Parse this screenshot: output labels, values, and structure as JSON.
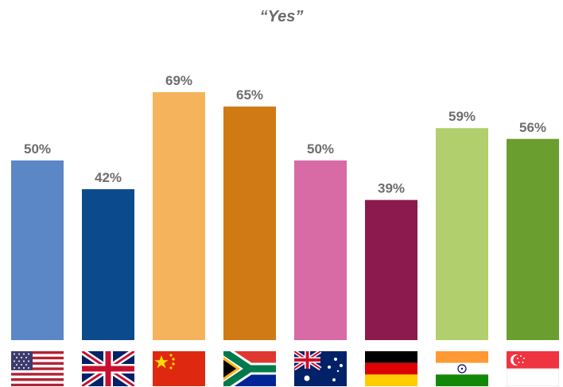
{
  "chart_data": {
    "type": "bar",
    "title": "“Yes”",
    "categories": [
      "United States",
      "United Kingdom",
      "China",
      "South Africa",
      "Australia",
      "Germany",
      "India",
      "Singapore"
    ],
    "values": [
      50,
      42,
      69,
      65,
      50,
      39,
      59,
      56
    ],
    "value_labels": [
      "50%",
      "42%",
      "69%",
      "65%",
      "50%",
      "39%",
      "59%",
      "56%"
    ],
    "bar_colors": [
      "#5b87c6",
      "#0b4a8c",
      "#f5b35c",
      "#cf7a14",
      "#d86aa6",
      "#8c1a4e",
      "#b1cf6c",
      "#6a9f30"
    ],
    "category_icons": [
      "us-flag-icon",
      "uk-flag-icon",
      "china-flag-icon",
      "south-africa-flag-icon",
      "australia-flag-icon",
      "germany-flag-icon",
      "india-flag-icon",
      "singapore-flag-icon"
    ],
    "ylim": [
      0,
      75
    ],
    "xlabel": "",
    "ylabel": "",
    "grid": false,
    "legend": "none"
  }
}
